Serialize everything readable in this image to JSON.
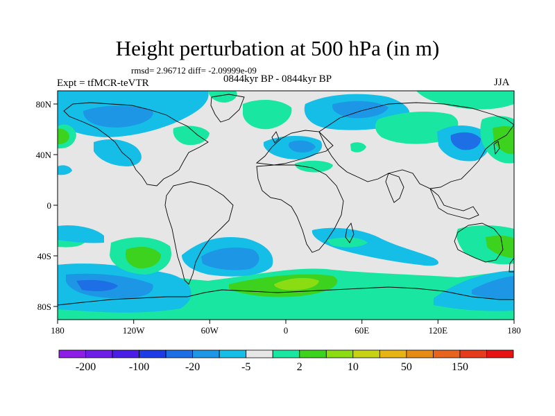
{
  "title": "Height perturbation at 500 hPa (in m)",
  "stats": "rmsd= 2.96712 diff= -2.09999e-09",
  "subtitle": "0844kyr BP - 0844kyr BP",
  "experiment": "Expt = tfMCR-teVTR",
  "season": "JJA",
  "axes": {
    "x_ticks": [
      "180",
      "120W",
      "60W",
      "0",
      "60E",
      "120E",
      "180"
    ],
    "y_ticks": [
      "80N",
      "40N",
      "0",
      "40S",
      "80S"
    ]
  },
  "colorbar": {
    "colors": [
      "#8c1ee6",
      "#6e1ee6",
      "#4b1ee6",
      "#1e3ce6",
      "#1e6ee6",
      "#1e96e6",
      "#14bee6",
      "#e6e6e6",
      "#19e6a0",
      "#3cd21e",
      "#8cdc14",
      "#c8d214",
      "#e6b414",
      "#e68c14",
      "#e6641e",
      "#e63c1e",
      "#e61414"
    ],
    "labels": [
      "-200",
      "-100",
      "-20",
      "-5",
      "2",
      "10",
      "50",
      "150"
    ]
  }
}
